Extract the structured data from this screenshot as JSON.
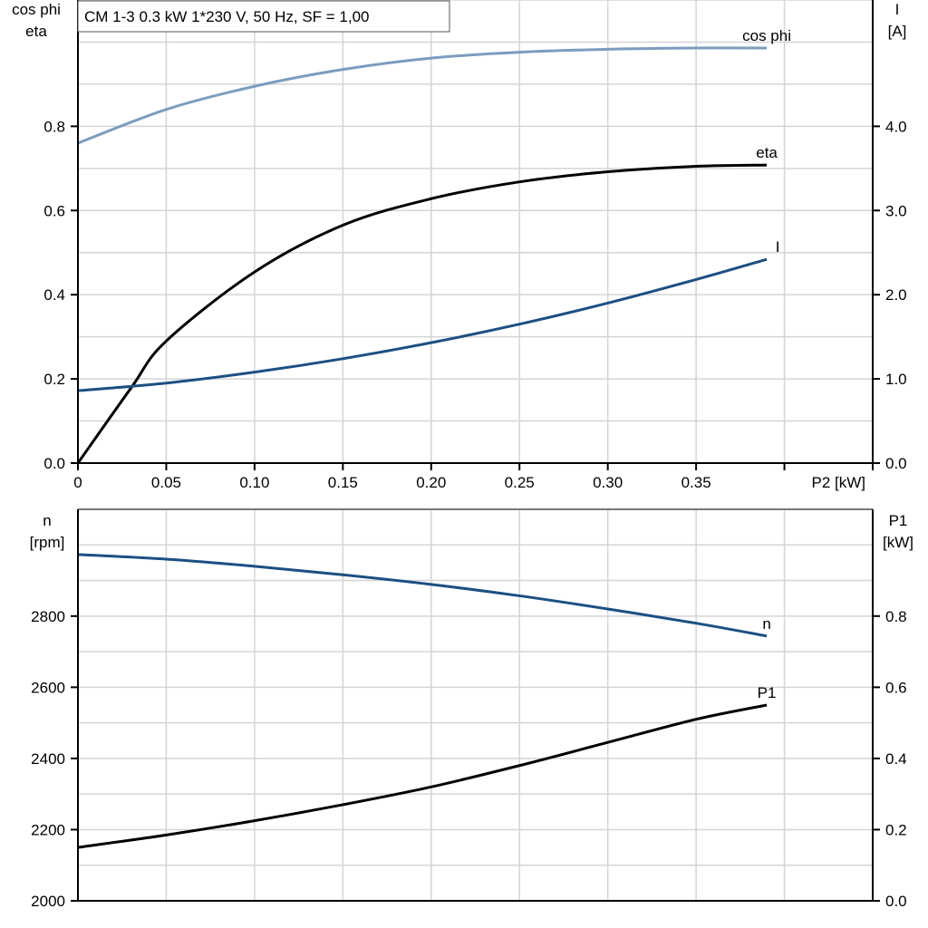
{
  "title": "CM 1-3   0.3 kW   1*230 V, 50 Hz, SF = 1,00",
  "colors": {
    "cos_phi": "#7b9dbf",
    "I": "#1d4f83",
    "n": "#1d4f83",
    "eta": "#000000",
    "P1": "#000000",
    "grid": "#d4d4d4"
  },
  "chart_data": [
    {
      "type": "line",
      "x_label": "P2 [kW]",
      "x_range": [
        0,
        0.45
      ],
      "x_ticks": [
        "0",
        "0.05",
        "0.10",
        "0.15",
        "0.20",
        "0.25",
        "0.30",
        "0.35"
      ],
      "y_left_label": [
        "cos phi",
        "eta"
      ],
      "y_left_range": [
        0,
        1.1
      ],
      "y_left_ticks": [
        "0.0",
        "0.2",
        "0.4",
        "0.6",
        "0.8"
      ],
      "y_right_label": [
        "I",
        "[A]"
      ],
      "y_right_range": [
        0,
        5.5
      ],
      "y_right_ticks": [
        "0.0",
        "1.0",
        "2.0",
        "3.0",
        "4.0"
      ],
      "grid": true,
      "series": [
        {
          "name": "cos phi",
          "axis": "left",
          "x": [
            0,
            0.05,
            0.1,
            0.15,
            0.2,
            0.25,
            0.3,
            0.35,
            0.39
          ],
          "y": [
            0.76,
            0.84,
            0.895,
            0.935,
            0.962,
            0.976,
            0.983,
            0.986,
            0.986
          ]
        },
        {
          "name": "eta",
          "axis": "left",
          "x": [
            0,
            0.03,
            0.05,
            0.1,
            0.15,
            0.2,
            0.25,
            0.3,
            0.35,
            0.39
          ],
          "y": [
            0,
            0.178,
            0.29,
            0.454,
            0.565,
            0.628,
            0.668,
            0.692,
            0.705,
            0.708
          ]
        },
        {
          "name": "I",
          "axis": "right",
          "x": [
            0,
            0.05,
            0.1,
            0.15,
            0.2,
            0.25,
            0.3,
            0.35,
            0.39
          ],
          "y": [
            0.86,
            0.95,
            1.08,
            1.24,
            1.43,
            1.65,
            1.9,
            2.18,
            2.42
          ]
        }
      ]
    },
    {
      "type": "line",
      "x_range": [
        0,
        0.45
      ],
      "y_left_label": [
        "n",
        "[rpm]"
      ],
      "y_left_range": [
        2000,
        3100
      ],
      "y_left_ticks": [
        "2000",
        "2200",
        "2400",
        "2600",
        "2800"
      ],
      "y_right_label": [
        "P1",
        "[kW]"
      ],
      "y_right_range": [
        0,
        1.1
      ],
      "y_right_ticks": [
        "0.0",
        "0.2",
        "0.4",
        "0.6",
        "0.8"
      ],
      "grid": true,
      "series": [
        {
          "name": "n",
          "axis": "left",
          "x": [
            0,
            0.05,
            0.1,
            0.15,
            0.2,
            0.25,
            0.3,
            0.35,
            0.39
          ],
          "y": [
            2973,
            2960,
            2940,
            2916,
            2889,
            2857,
            2820,
            2780,
            2744
          ]
        },
        {
          "name": "P1",
          "axis": "right",
          "x": [
            0,
            0.05,
            0.1,
            0.15,
            0.2,
            0.25,
            0.3,
            0.35,
            0.39
          ],
          "y": [
            0.15,
            0.185,
            0.225,
            0.27,
            0.32,
            0.38,
            0.445,
            0.51,
            0.55
          ]
        }
      ]
    }
  ]
}
